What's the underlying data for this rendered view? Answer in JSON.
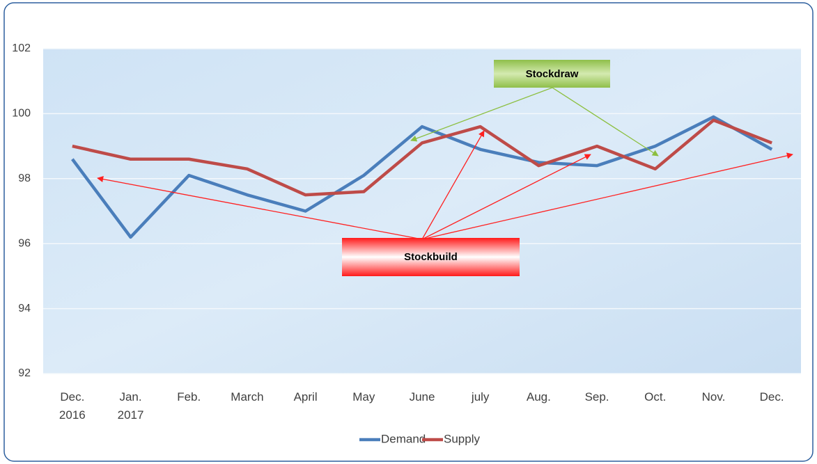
{
  "chart_data": {
    "type": "line",
    "categories": [
      "Dec.\n2016",
      "Jan.\n2017",
      "Feb.",
      "March",
      "April",
      "May",
      "June",
      "july",
      "Aug.",
      "Sep.",
      "Oct.",
      "Nov.",
      "Dec."
    ],
    "series": [
      {
        "name": "Demand",
        "color": "#4a7ebb",
        "values": [
          98.6,
          96.2,
          98.1,
          97.5,
          97.0,
          98.1,
          99.6,
          98.9,
          98.5,
          98.4,
          99.0,
          99.9,
          98.9
        ]
      },
      {
        "name": "Supply",
        "color": "#be4b48",
        "values": [
          99.0,
          98.6,
          98.6,
          98.3,
          97.5,
          97.6,
          99.1,
          99.6,
          98.4,
          99.0,
          98.3,
          99.8,
          99.1
        ]
      }
    ],
    "ylim": [
      92,
      102
    ],
    "yticks": [
      92,
      94,
      96,
      98,
      100,
      102
    ],
    "grid": true,
    "legend": "bottom",
    "annotations": [
      "Stockdraw",
      "Stockbuild"
    ]
  }
}
